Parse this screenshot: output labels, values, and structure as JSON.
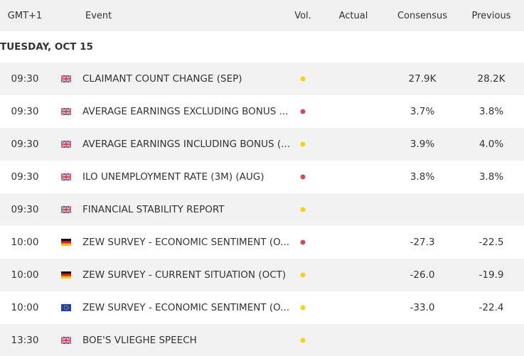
{
  "header": {
    "columns": [
      "GMT+1",
      "Event",
      "Vol.",
      "Actual",
      "Consensus",
      "Previous"
    ]
  },
  "date": "TUESDAY, OCT 15",
  "rows": [
    {
      "time": "09:30",
      "flag": "gb",
      "event": "CLAIMANT COUNT CHANGE (SEP)",
      "vol_color": "#f2d21b",
      "consensus": "27.9K",
      "previous": "28.2K"
    },
    {
      "time": "09:30",
      "flag": "gb",
      "event": "AVERAGE EARNINGS EXCLUDING BONUS ...",
      "vol_color": "#c8505a",
      "consensus": "3.7%",
      "previous": "3.8%"
    },
    {
      "time": "09:30",
      "flag": "gb",
      "event": "AVERAGE EARNINGS INCLUDING BONUS (...",
      "vol_color": "#f2d21b",
      "consensus": "3.9%",
      "previous": "4.0%"
    },
    {
      "time": "09:30",
      "flag": "gb",
      "event": "ILO UNEMPLOYMENT RATE (3M) (AUG)",
      "vol_color": "#c8505a",
      "consensus": "3.8%",
      "previous": "3.8%"
    },
    {
      "time": "09:30",
      "flag": "gb",
      "event": "FINANCIAL STABILITY REPORT",
      "vol_color": "#f2d21b"
    },
    {
      "time": "10:00",
      "flag": "de",
      "event": "ZEW SURVEY - ECONOMIC SENTIMENT (O...",
      "vol_color": "#c8505a",
      "consensus": "-27.3",
      "previous": "-22.5"
    },
    {
      "time": "10:00",
      "flag": "de",
      "event": "ZEW SURVEY - CURRENT SITUATION (OCT)",
      "vol_color": "#f2d21b",
      "consensus": "-26.0",
      "previous": "-19.9"
    },
    {
      "time": "10:00",
      "flag": "eu",
      "event": "ZEW SURVEY - ECONOMIC SENTIMENT (O...",
      "vol_color": "#f2d21b",
      "consensus": "-33.0",
      "previous": "-22.4"
    },
    {
      "time": "13:30",
      "flag": "gb",
      "event": "BOE'S VLIEGHE SPEECH",
      "vol_color": "#f2d21b"
    }
  ]
}
